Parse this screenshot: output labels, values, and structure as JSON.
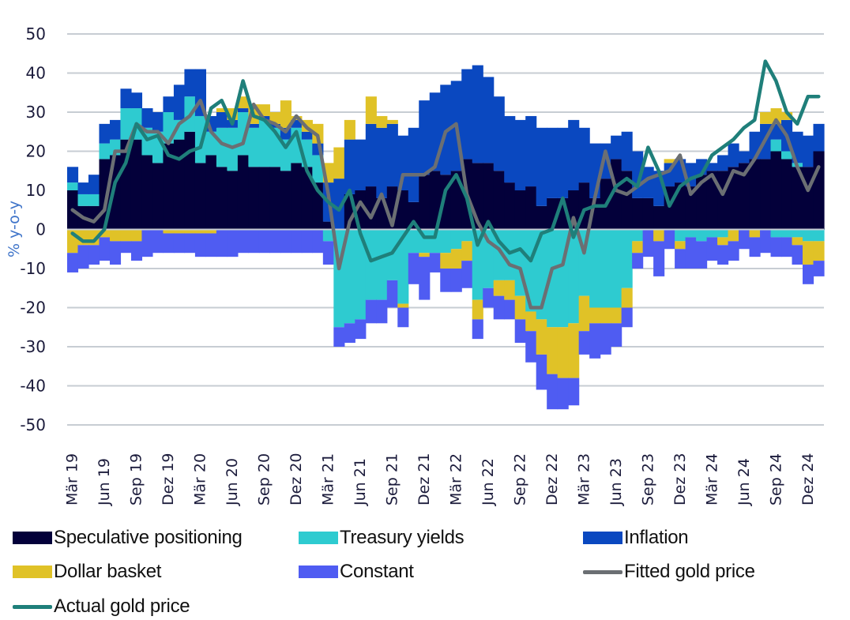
{
  "chart_data": {
    "type": "bar",
    "subtype": "stacked-bar-with-lines",
    "title": "",
    "xlabel": "",
    "ylabel": "% y-o-y",
    "ylim": [
      -50,
      50
    ],
    "yticks": [
      50,
      40,
      30,
      20,
      10,
      0,
      -10,
      -20,
      -30,
      -40,
      -50
    ],
    "grid": true,
    "legend_position": "bottom",
    "x_start": "Mär 19",
    "x_end": "Jan 25",
    "frequency": "monthly",
    "xtick_labels": [
      "Mär 19",
      "Jun 19",
      "Sep 19",
      "Dez 19",
      "Mär 20",
      "Jun 20",
      "Sep 20",
      "Dez 20",
      "Mär 21",
      "Jun 21",
      "Sep 21",
      "Dez 21",
      "Mär 22",
      "Jun 22",
      "Sep 22",
      "Dez 22",
      "Mär 23",
      "Jun 23",
      "Sep 23",
      "Dez 23",
      "Mär 24",
      "Jun 24",
      "Sep 24",
      "Dez 24"
    ],
    "colors": {
      "speculative": "#03003a",
      "treasury": "#2ecbd0",
      "inflation": "#0a48c0",
      "dollar": "#e0c227",
      "constant": "#4f5cf2",
      "fitted": "#6b6f73",
      "actual": "#1f7f7a",
      "grid": "#c7cdd3"
    },
    "series": [
      {
        "name": "Speculative positioning",
        "key": "speculative",
        "kind": "bar",
        "values": [
          10,
          6,
          6,
          18,
          19,
          23,
          23,
          19,
          17,
          22,
          23,
          25,
          17,
          19,
          16,
          15,
          19,
          16,
          16,
          16,
          15,
          17,
          16,
          12,
          2,
          -3,
          9,
          10,
          11,
          8,
          11,
          10,
          7,
          14,
          15,
          14,
          15,
          18,
          17,
          17,
          15,
          12,
          10,
          11,
          6,
          8,
          8,
          10,
          12,
          8,
          13,
          18,
          15,
          8,
          8,
          6,
          11,
          12,
          11,
          14,
          15,
          15,
          16,
          17,
          18,
          18,
          20,
          18,
          16,
          16,
          20
        ]
      },
      {
        "name": "Treasury yields",
        "key": "treasury",
        "kind": "bar",
        "values": [
          2,
          3,
          3,
          4,
          4,
          8,
          8,
          7,
          8,
          8,
          5,
          9,
          12,
          6,
          10,
          11,
          11,
          10,
          12,
          10,
          8,
          9,
          7,
          7,
          0,
          0,
          0,
          0,
          0,
          0,
          0,
          0,
          0,
          0,
          0,
          0,
          0,
          0,
          0,
          0,
          0,
          0,
          0,
          0,
          0,
          0,
          0,
          0,
          0,
          0,
          0,
          0,
          0,
          0,
          0,
          0,
          0,
          0,
          0,
          0,
          0,
          0,
          0,
          0,
          0,
          0,
          3,
          2,
          1,
          0,
          0
        ]
      },
      {
        "name": "Inflation",
        "key": "inflation",
        "kind": "bar",
        "values": [
          4,
          3,
          5,
          5,
          5,
          5,
          4,
          5,
          5,
          4,
          9,
          7,
          12,
          4,
          4,
          2,
          1,
          1,
          1,
          1,
          3,
          2,
          2,
          3,
          10,
          13,
          14,
          13,
          16,
          18,
          16,
          14,
          19,
          19,
          20,
          23,
          23,
          23,
          25,
          22,
          19,
          17,
          18,
          18,
          20,
          18,
          18,
          18,
          14,
          14,
          9,
          6,
          10,
          12,
          8,
          9,
          6,
          6,
          6,
          4,
          2,
          4,
          6,
          3,
          7,
          9,
          4,
          8,
          8,
          8,
          7
        ]
      },
      {
        "name": "Dollar basket",
        "key": "dollar",
        "kind": "bar",
        "values": [
          0,
          0,
          0,
          0,
          0,
          0,
          0,
          0,
          0,
          0,
          0,
          0,
          0,
          0,
          1,
          3,
          3,
          5,
          3,
          3,
          7,
          1,
          3,
          5,
          5,
          8,
          5,
          0,
          7,
          3,
          1,
          0,
          0,
          0,
          0,
          0,
          0,
          0,
          0,
          0,
          0,
          0,
          0,
          0,
          0,
          0,
          0,
          0,
          0,
          0,
          0,
          0,
          0,
          0,
          0,
          0,
          1,
          0,
          0,
          0,
          0,
          0,
          0,
          0,
          0,
          3,
          4,
          2,
          0,
          0,
          0
        ]
      },
      {
        "name": "Treasury yields (negative)",
        "key": "treasury_neg",
        "kind": "bar",
        "values": [
          0,
          0,
          0,
          0,
          0,
          0,
          0,
          0,
          0,
          0,
          0,
          0,
          0,
          0,
          0,
          0,
          0,
          0,
          0,
          0,
          0,
          0,
          0,
          0,
          -3,
          -25,
          -24,
          -23,
          -18,
          -18,
          -13,
          -19,
          -6,
          -6,
          -6,
          -6,
          -5,
          -3,
          -18,
          -15,
          -13,
          -13,
          -17,
          -21,
          -23,
          -25,
          -25,
          -24,
          -17,
          -20,
          -20,
          -20,
          -15,
          -3,
          0,
          0,
          0,
          -3,
          -2,
          -3,
          -2,
          -2,
          0,
          0,
          0,
          0,
          -2,
          -2,
          -2,
          -3,
          -3
        ]
      },
      {
        "name": "Dollar basket (negative)",
        "key": "dollar_neg",
        "kind": "bar",
        "values": [
          -6,
          -4,
          -4,
          -2,
          -3,
          -3,
          -3,
          0,
          0,
          -1,
          -1,
          -1,
          -1,
          -1,
          0,
          0,
          0,
          0,
          0,
          0,
          0,
          0,
          0,
          0,
          0,
          0,
          0,
          0,
          0,
          0,
          0,
          -1,
          0,
          -1,
          0,
          -4,
          -5,
          -5,
          -5,
          0,
          -4,
          -5,
          -6,
          -5,
          -9,
          -12,
          -13,
          -14,
          -9,
          -4,
          -4,
          -4,
          -5,
          -3,
          0,
          -3,
          0,
          -2,
          0,
          0,
          0,
          -2,
          -3,
          0,
          -2,
          0,
          0,
          0,
          -2,
          -6,
          -5
        ]
      },
      {
        "name": "Constant",
        "key": "constant",
        "kind": "bar",
        "values": [
          -5,
          -6,
          -5,
          -6,
          -6,
          -3,
          -5,
          -7,
          -6,
          -5,
          -5,
          -5,
          -6,
          -6,
          -7,
          -7,
          -6,
          -6,
          -6,
          -6,
          -6,
          -6,
          -6,
          -6,
          -6,
          -5,
          -5,
          -5,
          -6,
          -6,
          -7,
          -5,
          -8,
          -11,
          -5,
          -6,
          -6,
          -7,
          -5,
          -5,
          -6,
          -5,
          -6,
          -8,
          -9,
          -9,
          -8,
          -7,
          -6,
          -9,
          -8,
          -6,
          -5,
          -4,
          -7,
          -9,
          -5,
          -5,
          -8,
          -7,
          -6,
          -5,
          -5,
          -5,
          -5,
          -6,
          -5,
          -5,
          -5,
          -5,
          -4
        ]
      },
      {
        "name": "Fitted gold price",
        "key": "fitted",
        "kind": "line",
        "values": [
          5,
          3,
          2,
          5,
          20,
          20,
          27,
          25,
          25,
          22,
          27,
          29,
          33,
          25,
          22,
          21,
          22,
          32,
          28,
          27,
          25,
          29,
          26,
          24,
          9,
          -10,
          2,
          7,
          3,
          9,
          1,
          14,
          14,
          14,
          16,
          25,
          27,
          9,
          2,
          -3,
          -5,
          -9,
          -10,
          -20,
          -20,
          -10,
          -9,
          3,
          -6,
          8,
          20,
          10,
          9,
          11,
          13,
          14,
          15,
          19,
          9,
          12,
          14,
          9,
          15,
          14,
          18,
          23,
          28,
          24,
          16,
          10,
          16
        ]
      },
      {
        "name": "Actual gold price",
        "key": "actual",
        "kind": "line",
        "values": [
          -1,
          -3,
          -3,
          0,
          12,
          17,
          27,
          23,
          24,
          19,
          18,
          20,
          21,
          31,
          33,
          27,
          38,
          29,
          28,
          25,
          21,
          25,
          15,
          10,
          7,
          5,
          10,
          -1,
          -8,
          -7,
          -6,
          -2,
          2,
          -2,
          -2,
          10,
          14,
          8,
          -4,
          2,
          -3,
          -6,
          -5,
          -8,
          -1,
          0,
          8,
          -2,
          5,
          6,
          6,
          11,
          13,
          11,
          21,
          15,
          6,
          11,
          13,
          14,
          19,
          21,
          23,
          26,
          28,
          43,
          38,
          30,
          27,
          34,
          34
        ]
      }
    ]
  },
  "legend": {
    "items": [
      {
        "label": "Speculative positioning",
        "kind": "box",
        "color": "#03003a"
      },
      {
        "label": "Treasury yields",
        "kind": "box",
        "color": "#2ecbd0"
      },
      {
        "label": "Inflation",
        "kind": "box",
        "color": "#0a48c0"
      },
      {
        "label": "Dollar basket",
        "kind": "box",
        "color": "#e0c227"
      },
      {
        "label": "Constant",
        "kind": "box",
        "color": "#4f5cf2"
      },
      {
        "label": "Fitted gold price",
        "kind": "line",
        "color": "#6b6f73"
      },
      {
        "label": "Actual gold price",
        "kind": "line",
        "color": "#1f7f7a"
      }
    ]
  }
}
